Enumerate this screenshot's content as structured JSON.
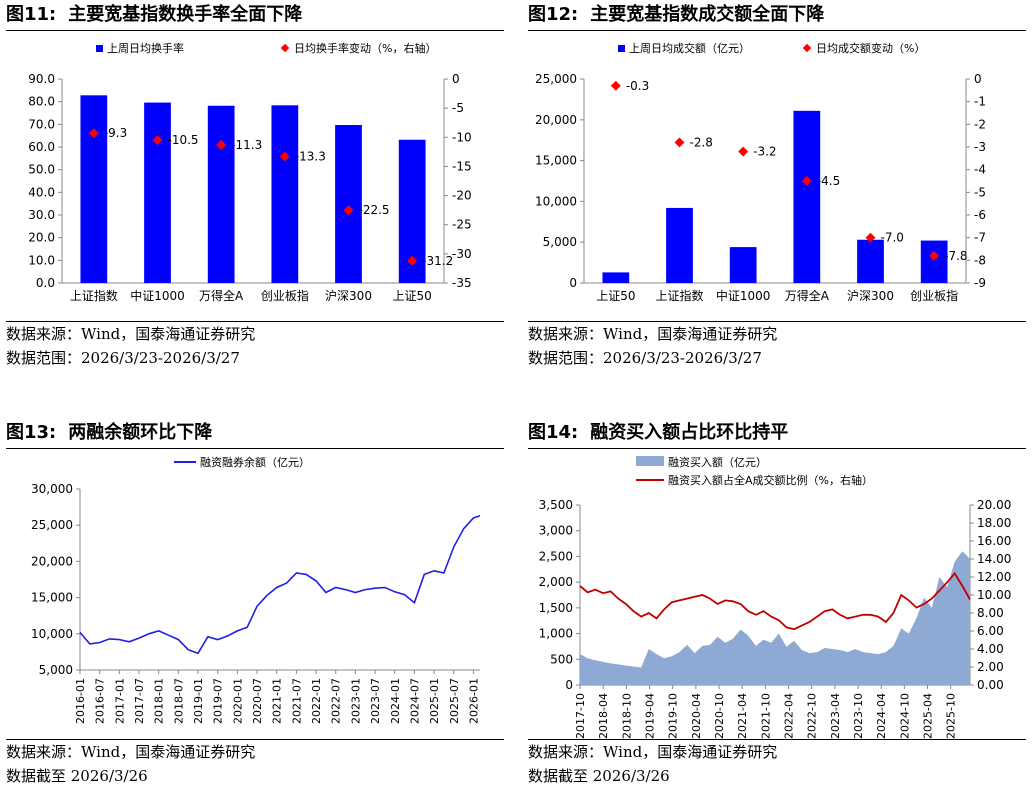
{
  "charts": [
    {
      "id": "fig11",
      "title_num": "图11:",
      "title_text": "主要宽基指数换手率全面下降",
      "source": "数据来源：Wind，国泰海通证券研究",
      "range_note": "数据范围：2026/3/23-2026/3/27"
    },
    {
      "id": "fig12",
      "title_num": "图12:",
      "title_text": "主要宽基指数成交额全面下降",
      "source": "数据来源：Wind，国泰海通证券研究",
      "range_note": "数据范围：2026/3/23-2026/3/27"
    },
    {
      "id": "fig13",
      "title_num": "图13:",
      "title_text": "两融余额环比下降",
      "source": "数据来源：Wind，国泰海通证券研究",
      "range_note": "数据截至 2026/3/26"
    },
    {
      "id": "fig14",
      "title_num": "图14:",
      "title_text": "融资买入额占比环比持平",
      "source": "数据来源：Wind，国泰海通证券研究",
      "range_note": "数据截至 2026/3/26"
    }
  ],
  "colors": {
    "bar": "#0000FF",
    "marker": "#FF0000",
    "line13": "#1F1FE6",
    "area14": "#8EA9D4",
    "line14": "#C00000"
  },
  "chart_data": [
    {
      "type": "bar",
      "categories": [
        "上证指数",
        "中证1000",
        "万得全A",
        "创业板指",
        "沪深300",
        "上证50"
      ],
      "series": [
        {
          "name": "上周日均换手率",
          "axis": "left",
          "values": [
            82.8,
            79.6,
            78.2,
            78.4,
            69.7,
            63.2
          ]
        },
        {
          "name": "日均换手率变动（%，右轴）",
          "axis": "right",
          "kind": "scatter",
          "values": [
            -9.3,
            -10.5,
            -11.3,
            -13.3,
            -22.5,
            -31.2
          ]
        }
      ],
      "y_left": {
        "min": 0,
        "max": 90,
        "step": 10,
        "decimals": 1
      },
      "y_right": {
        "min": -35,
        "max": 0,
        "step": 5
      },
      "data_labels": [
        "-9.3",
        "-10.5",
        "-11.3",
        "-13.3",
        "-22.5",
        "-31.2"
      ]
    },
    {
      "type": "bar",
      "categories": [
        "上证50",
        "上证指数",
        "中证1000",
        "万得全A",
        "沪深300",
        "创业板指"
      ],
      "series": [
        {
          "name": "上周日均成交额（亿元）",
          "axis": "left",
          "values": [
            1300,
            9200,
            4400,
            21100,
            5300,
            5200
          ]
        },
        {
          "name": "日均成交额变动（%）",
          "axis": "right",
          "kind": "scatter",
          "values": [
            -0.3,
            -2.8,
            -3.2,
            -4.5,
            -7.0,
            -7.8
          ]
        }
      ],
      "y_left": {
        "min": 0,
        "max": 25000,
        "step": 5000,
        "tick_labels": [
          "0",
          "5,000",
          "10,000",
          "15,000",
          "20,000",
          "25,000"
        ]
      },
      "y_right": {
        "min": -9,
        "max": 0,
        "step": 1
      },
      "data_labels": [
        "-0.3",
        "-2.8",
        "-3.2",
        "-4.5",
        "-7.0",
        "-7.8"
      ]
    },
    {
      "type": "line",
      "series": [
        {
          "name": "融资融券余额（亿元）"
        }
      ],
      "x": [
        "2016-01",
        "2016-04",
        "2016-07",
        "2016-10",
        "2017-01",
        "2017-04",
        "2017-07",
        "2017-10",
        "2018-01",
        "2018-04",
        "2018-07",
        "2018-10",
        "2019-01",
        "2019-04",
        "2019-07",
        "2019-10",
        "2020-01",
        "2020-04",
        "2020-07",
        "2020-10",
        "2021-01",
        "2021-04",
        "2021-07",
        "2021-10",
        "2022-01",
        "2022-04",
        "2022-07",
        "2022-10",
        "2023-01",
        "2023-04",
        "2023-07",
        "2023-10",
        "2024-01",
        "2024-04",
        "2024-07",
        "2024-10",
        "2025-01",
        "2025-04",
        "2025-07",
        "2025-10",
        "2026-01",
        "2026-03"
      ],
      "values": [
        10200,
        8600,
        8800,
        9300,
        9200,
        8900,
        9400,
        10000,
        10400,
        9800,
        9200,
        7800,
        7300,
        9600,
        9200,
        9700,
        10400,
        10900,
        13800,
        15300,
        16400,
        17000,
        18400,
        18200,
        17300,
        15700,
        16400,
        16100,
        15700,
        16100,
        16300,
        16400,
        15800,
        15400,
        14300,
        18200,
        18700,
        18400,
        22000,
        24500,
        26000,
        26300
      ],
      "x_ticks": [
        "2016-01",
        "2016-07",
        "2017-01",
        "2017-07",
        "2018-01",
        "2018-07",
        "2019-01",
        "2019-07",
        "2020-01",
        "2020-07",
        "2021-01",
        "2021-07",
        "2022-01",
        "2022-07",
        "2023-01",
        "2023-07",
        "2024-01",
        "2024-07",
        "2025-01",
        "2025-07",
        "2026-01"
      ],
      "y": {
        "min": 5000,
        "max": 30000,
        "step": 5000,
        "tick_labels": [
          "5,000",
          "10,000",
          "15,000",
          "20,000",
          "25,000",
          "30,000"
        ]
      }
    },
    {
      "type": "area",
      "series": [
        {
          "name": "融资买入额（亿元）",
          "kind": "area",
          "axis": "left",
          "values": [
            600,
            520,
            480,
            450,
            420,
            400,
            380,
            360,
            340,
            700,
            600,
            520,
            560,
            640,
            780,
            620,
            760,
            780,
            940,
            820,
            900,
            1080,
            960,
            760,
            880,
            820,
            1000,
            740,
            860,
            680,
            620,
            640,
            720,
            700,
            680,
            640,
            700,
            640,
            620,
            600,
            640,
            760,
            1100,
            1000,
            1300,
            1700,
            1500,
            2100,
            1900,
            2400,
            2600,
            2450
          ]
        },
        {
          "name": "融资买入额占全A成交额比例（%，右轴）",
          "kind": "line",
          "axis": "right",
          "values": [
            11.0,
            10.3,
            10.6,
            10.2,
            10.4,
            9.6,
            9.0,
            8.2,
            7.6,
            8.0,
            7.4,
            8.4,
            9.2,
            9.4,
            9.6,
            9.8,
            10.0,
            9.6,
            9.0,
            9.4,
            9.3,
            9.0,
            8.2,
            7.8,
            8.2,
            7.6,
            7.2,
            6.4,
            6.2,
            6.6,
            7.0,
            7.6,
            8.2,
            8.4,
            7.8,
            7.4,
            7.6,
            7.8,
            7.8,
            7.6,
            7.0,
            8.0,
            10.0,
            9.4,
            8.6,
            9.0,
            9.6,
            10.5,
            11.4,
            12.4,
            11.0,
            9.5
          ]
        }
      ],
      "x_range": [
        "2017-10",
        "2026-03"
      ],
      "x_ticks": [
        "2017-10",
        "2018-04",
        "2018-10",
        "2019-04",
        "2019-10",
        "2020-04",
        "2020-10",
        "2021-04",
        "2021-10",
        "2022-04",
        "2022-10",
        "2023-04",
        "2023-10",
        "2024-04",
        "2024-10",
        "2025-04",
        "2025-10"
      ],
      "y_left": {
        "min": 0,
        "max": 3500,
        "step": 500,
        "tick_labels": [
          "0",
          "500",
          "1,000",
          "1,500",
          "2,000",
          "2,500",
          "3,000",
          "3,500"
        ]
      },
      "y_right": {
        "min": 0,
        "max": 20,
        "step": 2,
        "tick_labels": [
          "0.00",
          "2.00",
          "4.00",
          "6.00",
          "8.00",
          "10.00",
          "12.00",
          "14.00",
          "16.00",
          "18.00",
          "20.00"
        ]
      }
    }
  ]
}
